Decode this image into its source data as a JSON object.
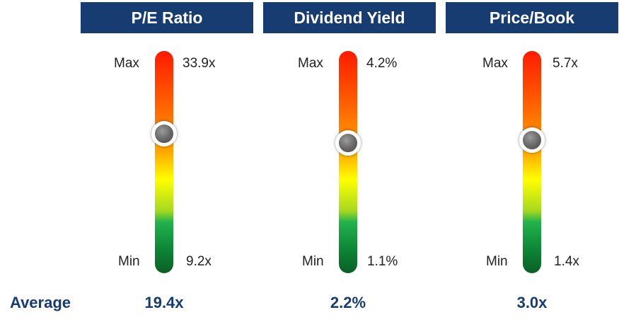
{
  "chart_data": [
    {
      "type": "gauge",
      "title": "P/E Ratio",
      "max_label": "Max",
      "min_label": "Min",
      "max": 33.9,
      "min": 9.2,
      "max_text": "33.9x",
      "min_text": "9.2x",
      "average": 19.4,
      "average_text": "19.4x"
    },
    {
      "type": "gauge",
      "title": "Dividend Yield",
      "max_label": "Max",
      "min_label": "Min",
      "max": 4.2,
      "min": 1.1,
      "max_text": "4.2%",
      "min_text": "1.1%",
      "average": 2.2,
      "average_text": "2.2%"
    },
    {
      "type": "gauge",
      "title": "Price/Book",
      "max_label": "Max",
      "min_label": "Min",
      "max": 5.7,
      "min": 1.4,
      "max_text": "5.7x",
      "min_text": "1.4x",
      "average": 3.0,
      "average_text": "3.0x"
    }
  ],
  "average_label": "Average",
  "colors": {
    "header_background": "#173c72",
    "header_text": "#ffffff",
    "average_text": "#173c72",
    "scale_high": "#ff1a00",
    "scale_mid": "#ffff00",
    "scale_low": "#0a5f24"
  }
}
